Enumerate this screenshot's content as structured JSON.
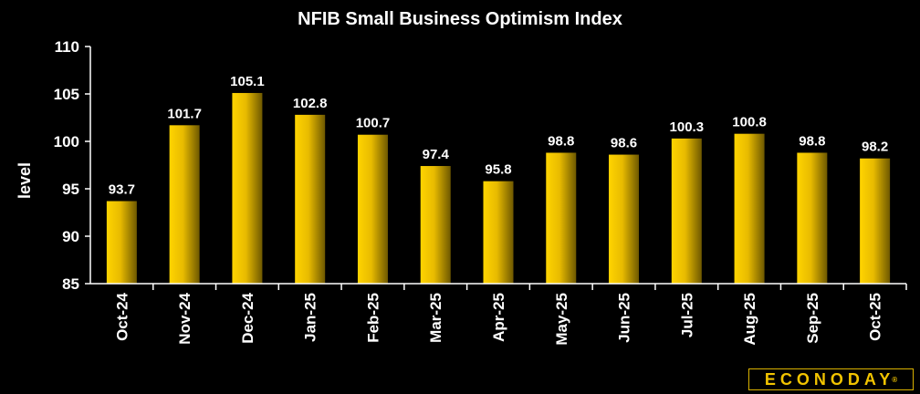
{
  "chart_data": {
    "type": "bar",
    "title": "NFIB Small Business Optimism Index",
    "xlabel": "",
    "ylabel": "level",
    "ylim": [
      85,
      110
    ],
    "yticks": [
      85,
      90,
      95,
      100,
      105,
      110
    ],
    "categories": [
      "Oct-24",
      "Nov-24",
      "Dec-24",
      "Jan-25",
      "Feb-25",
      "Mar-25",
      "Apr-25",
      "May-25",
      "Jun-25",
      "Jul-25",
      "Aug-25",
      "Sep-25",
      "Oct-25"
    ],
    "values": [
      93.7,
      101.7,
      105.1,
      102.8,
      100.7,
      97.4,
      95.8,
      98.8,
      98.6,
      100.3,
      100.8,
      98.8,
      98.2
    ],
    "value_labels": [
      "93.7",
      "101.7",
      "105.1",
      "102.8",
      "100.7",
      "97.4",
      "95.8",
      "98.8",
      "98.6",
      "100.3",
      "100.8",
      "98.8",
      "98.2"
    ],
    "grid": false,
    "legend": "none"
  },
  "colors": {
    "background": "#000000",
    "bar_light": "#ffd400",
    "bar_dark": "#6e5800",
    "text": "#ffffff",
    "logo": "#f2c400"
  },
  "logo": {
    "text": "ECONODAY",
    "mark": "®"
  }
}
